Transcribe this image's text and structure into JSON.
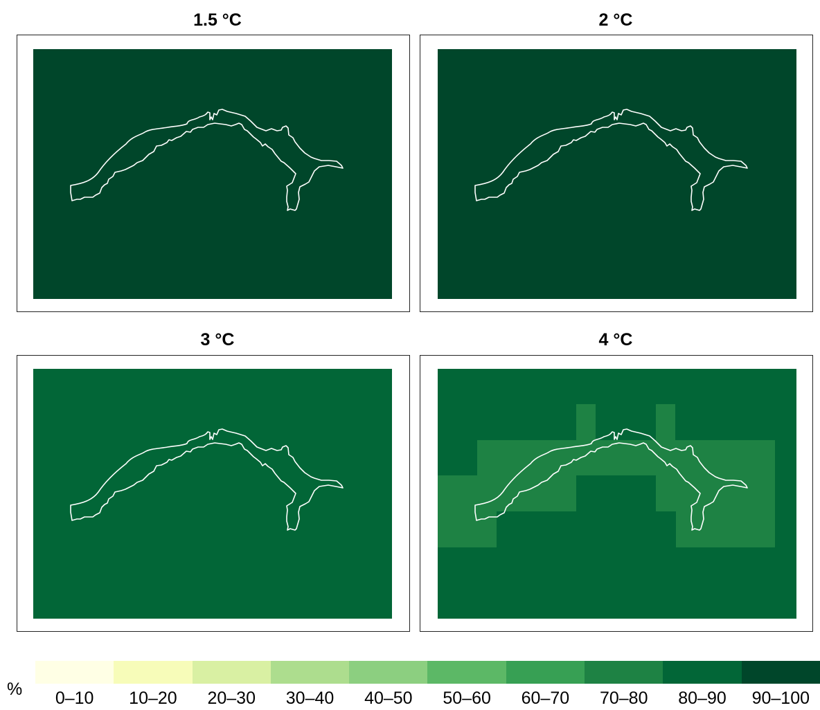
{
  "panels": [
    {
      "title": "1.5 °C",
      "background_class": "90–100",
      "background_color": "#00462a",
      "patches": []
    },
    {
      "title": "2 °C",
      "background_class": "90–100",
      "background_color": "#00462a",
      "patches": []
    },
    {
      "title": "3 °C",
      "background_class": "80–90",
      "background_color": "#026637",
      "patches": []
    },
    {
      "title": "4 °C",
      "background_class": "80–90",
      "background_color": "#026637",
      "patches": [
        {
          "class": "70–80",
          "color": "#1e8244",
          "area": "band across the Alpine arc"
        }
      ]
    }
  ],
  "region_outline_color": "#ffffff",
  "legend": {
    "unit": "%",
    "classes": [
      {
        "label": "0–10",
        "color": "#ffffe5"
      },
      {
        "label": "10–20",
        "color": "#f7fcb9"
      },
      {
        "label": "20–30",
        "color": "#d9f0a3"
      },
      {
        "label": "30–40",
        "color": "#addd8e"
      },
      {
        "label": "40–50",
        "color": "#8ccf80"
      },
      {
        "label": "50–60",
        "color": "#5cb866"
      },
      {
        "label": "60–70",
        "color": "#37a054"
      },
      {
        "label": "70–80",
        "color": "#1e8244"
      },
      {
        "label": "80–90",
        "color": "#026637"
      },
      {
        "label": "90–100",
        "color": "#00462a"
      }
    ]
  }
}
